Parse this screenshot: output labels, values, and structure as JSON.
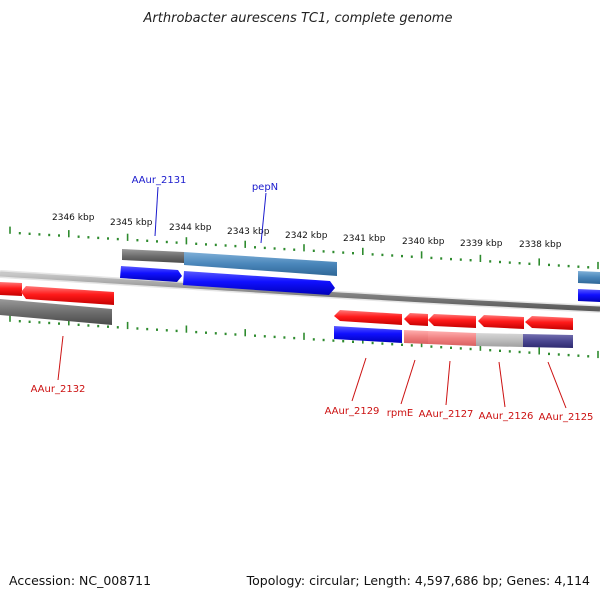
{
  "title": "Arthrobacter aurescens TC1, complete genome",
  "footer": {
    "accession": "Accession: NC_008711",
    "topology": "Topology: circular; Length: 4,597,686 bp; Genes: 4,114"
  },
  "colors": {
    "tick": "#2e8b2e",
    "backbone": "#8a8a8a",
    "label_top": "#1a1acd",
    "label_bottom": "#cc1111"
  },
  "scale_labels": [
    "2346 kbp",
    "2345 kbp",
    "2344 kbp",
    "2343 kbp",
    "2342 kbp",
    "2341 kbp",
    "2340 kbp",
    "2339 kbp",
    "2338 kbp"
  ],
  "gene_labels": [
    {
      "text": "AAur_2131",
      "strand": "top"
    },
    {
      "text": "pepN",
      "strand": "top"
    },
    {
      "text": "AAur_2132",
      "strand": "bottom"
    },
    {
      "text": "AAur_2129",
      "strand": "bottom"
    },
    {
      "text": "rpmE",
      "strand": "bottom"
    },
    {
      "text": "AAur_2127",
      "strand": "bottom"
    },
    {
      "text": "AAur_2126",
      "strand": "bottom"
    },
    {
      "text": "AAur_2125",
      "strand": "bottom"
    }
  ]
}
